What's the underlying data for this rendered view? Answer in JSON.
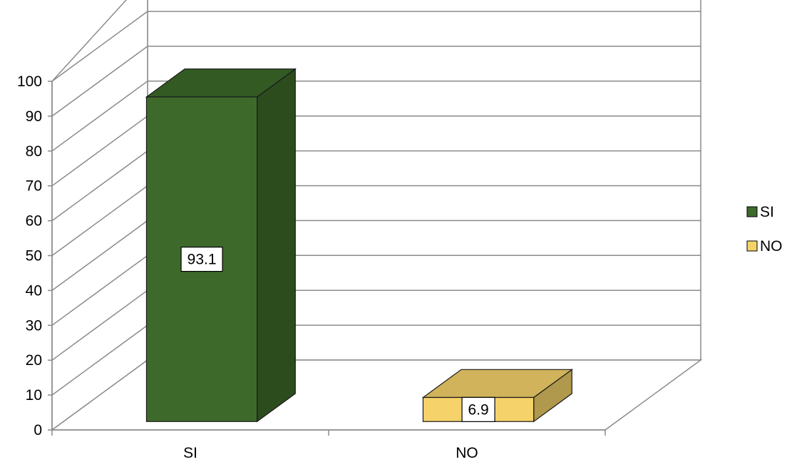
{
  "chart_data": {
    "type": "bar",
    "categories": [
      "SI",
      "NO"
    ],
    "series": [
      {
        "name": "SI",
        "values": [
          93.1,
          null
        ],
        "color": "#3d6a2a"
      },
      {
        "name": "NO",
        "values": [
          null,
          6.9
        ],
        "color": "#f5d36a"
      }
    ],
    "data_labels": [
      "93.1",
      "6.9"
    ],
    "ylim": [
      0,
      100
    ],
    "yticks": [
      0,
      10,
      20,
      30,
      40,
      50,
      60,
      70,
      80,
      90,
      100
    ],
    "grid": true,
    "legend_position": "right",
    "style": "3d-column"
  }
}
